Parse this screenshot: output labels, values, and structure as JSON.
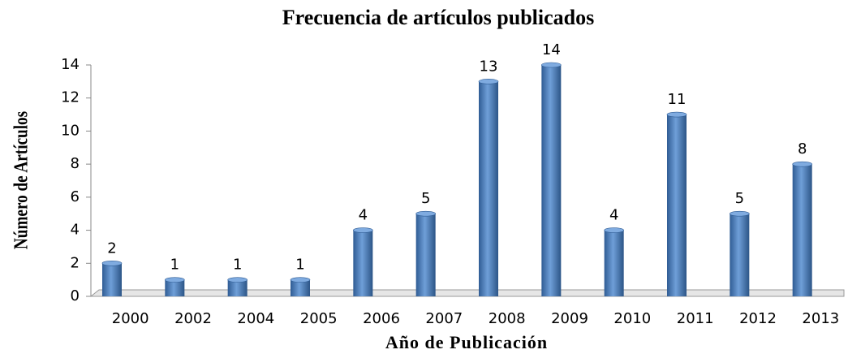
{
  "chart_data": {
    "type": "bar",
    "title": "Frecuencia de artículos publicados",
    "x_label": "Año de Publicación",
    "y_label": "Número de Artículos",
    "categories": [
      "2000",
      "2002",
      "2004",
      "2005",
      "2006",
      "2007",
      "2008",
      "2009",
      "2010",
      "2011",
      "2012",
      "2013"
    ],
    "values": [
      2,
      1,
      1,
      1,
      4,
      5,
      13,
      14,
      4,
      11,
      5,
      8
    ],
    "color": "#4a7ebb",
    "ylim": [
      0,
      14
    ],
    "yticks": [
      0,
      2,
      4,
      6,
      8,
      10,
      12,
      14
    ],
    "grid": false
  }
}
